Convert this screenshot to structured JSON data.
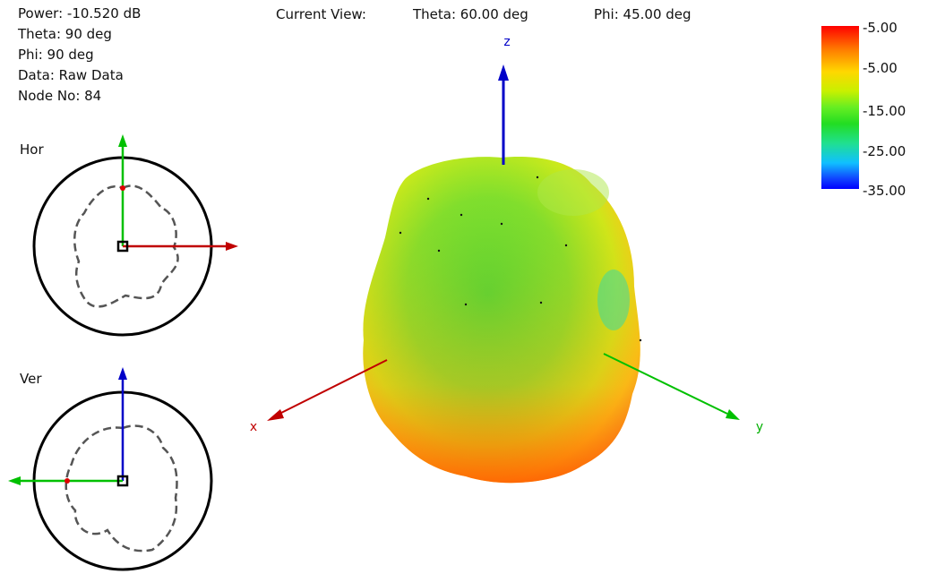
{
  "info": {
    "power": "Power: -10.520 dB",
    "theta": "Theta: 90 deg",
    "phi": "Phi: 90 deg",
    "data": "Data: Raw Data",
    "node": "Node No: 84"
  },
  "current_view": {
    "label": "Current View:",
    "theta": "Theta: 60.00 deg",
    "phi": "Phi: 45.00 deg"
  },
  "panels": {
    "hor": "Hor",
    "ver": "Ver"
  },
  "axes": {
    "x": "x",
    "y": "y",
    "z": "z"
  },
  "color_scale": {
    "ticks": [
      "-5.00",
      "-5.00",
      "-15.00",
      "-25.00",
      "-35.00"
    ],
    "colors": {
      "top": "#ff0000",
      "bottom": "#0000ff"
    }
  }
}
